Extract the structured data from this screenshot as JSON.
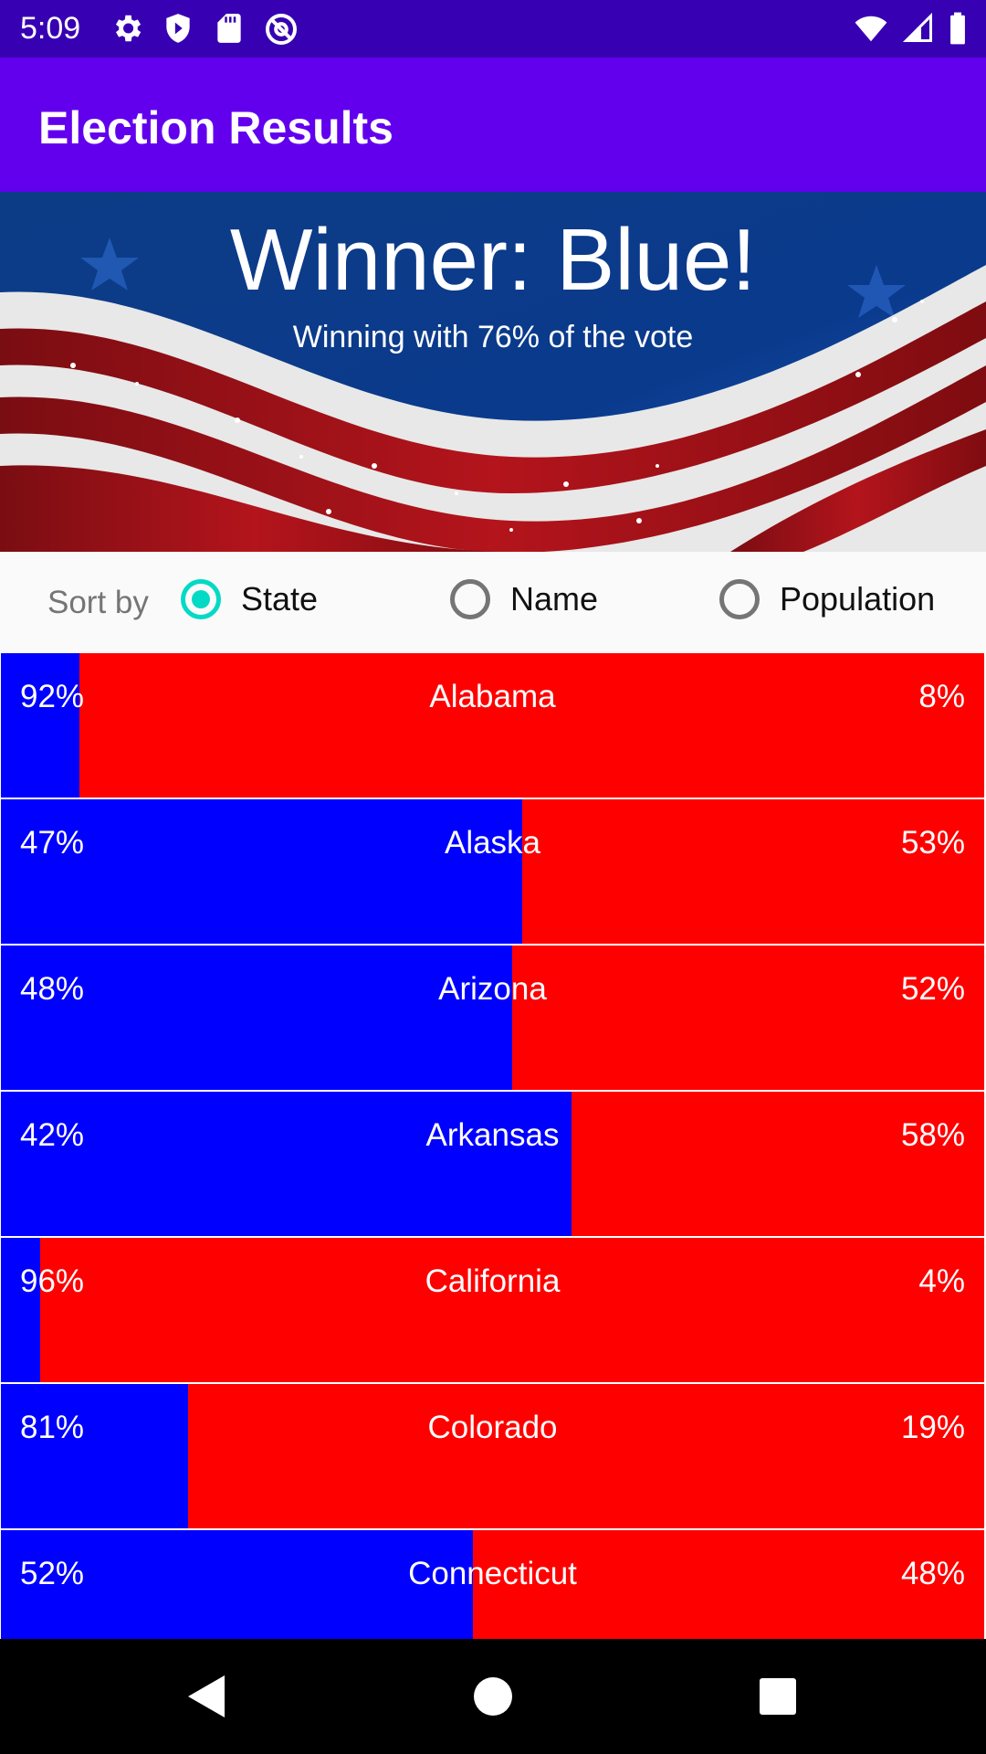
{
  "status_bar": {
    "time": "5:09",
    "left_icons": [
      "gear-icon",
      "shield-play-icon",
      "sd-card-icon",
      "at-sign-icon"
    ],
    "right_icons": [
      "wifi-icon",
      "signal-icon",
      "battery-icon"
    ]
  },
  "app_bar": {
    "title": "Election Results"
  },
  "banner": {
    "title": "Winner: Blue!",
    "subtitle": "Winning with 76% of the vote"
  },
  "sort": {
    "label": "Sort by",
    "options": [
      "State",
      "Name",
      "Population"
    ],
    "selected": "State"
  },
  "results": [
    {
      "state": "Alabama",
      "left_pct_label": "92%",
      "right_pct_label": "8%",
      "blue_fill": 0.08
    },
    {
      "state": "Alaska",
      "left_pct_label": "47%",
      "right_pct_label": "53%",
      "blue_fill": 0.53
    },
    {
      "state": "Arizona",
      "left_pct_label": "48%",
      "right_pct_label": "52%",
      "blue_fill": 0.52
    },
    {
      "state": "Arkansas",
      "left_pct_label": "42%",
      "right_pct_label": "58%",
      "blue_fill": 0.58
    },
    {
      "state": "California",
      "left_pct_label": "96%",
      "right_pct_label": "4%",
      "blue_fill": 0.04
    },
    {
      "state": "Colorado",
      "left_pct_label": "81%",
      "right_pct_label": "19%",
      "blue_fill": 0.19
    },
    {
      "state": "Connecticut",
      "left_pct_label": "52%",
      "right_pct_label": "48%",
      "blue_fill": 0.48
    }
  ],
  "colors": {
    "blue": "#0000ff",
    "red": "#ff0000",
    "app_bar": "#6200ee",
    "status_bar": "#3700b3",
    "radio_accent": "#03dac5"
  },
  "nav_bar": {
    "buttons": [
      "back-icon",
      "home-icon",
      "recents-icon"
    ]
  }
}
